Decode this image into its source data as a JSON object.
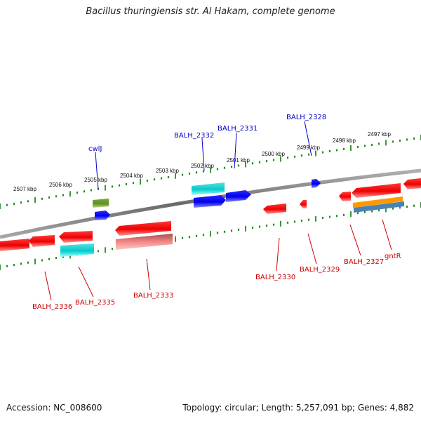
{
  "header": {
    "title": "Bacillus thuringiensis str. Al Hakam, complete genome"
  },
  "footer": {
    "accession": "Accession: NC_008600",
    "summary": "Topology: circular; Length: 5,257,091 bp; Genes: 4,882"
  },
  "colors": {
    "backbone": "#808080",
    "tick": "#228b22",
    "label_top": "#0000cc",
    "label_bottom": "#cc0000",
    "kbp_label": "#111111",
    "red_gene": "#ee0000",
    "blue_gene": "#0000ee",
    "cyan_gene": "#00cccc",
    "olive_gene": "#5f8f1f",
    "pink_gene": "#f08080",
    "orange_gene": "#ff9900",
    "steel_gene": "#4a82b4"
  },
  "kbp_labels": [
    "2507 kbp",
    "2506 kbp",
    "2505 kbp",
    "2504 kbp",
    "2503 kbp",
    "2502 kbp",
    "2501 kbp",
    "2500 kbp",
    "2499 kbp",
    "2498 kbp",
    "2497 kbp"
  ],
  "gene_labels_top": [
    "cwlJ",
    "BALH_2332",
    "BALH_2331",
    "BALH_2328"
  ],
  "gene_labels_bottom": [
    "BALH_2336",
    "BALH_2335",
    "BALH_2333",
    "BALH_2330",
    "BALH_2329",
    "BALH_2327",
    "gntR"
  ]
}
